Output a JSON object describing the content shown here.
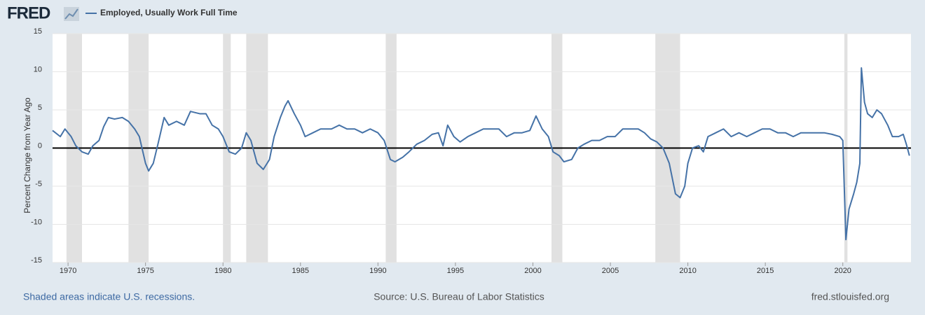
{
  "chart_data": {
    "type": "line",
    "logo": "FRED",
    "y_label": "Percent Change from Year Ago",
    "footer_left": "Shaded areas indicate U.S. recessions.",
    "footer_center": "Source: U.S. Bureau of Labor Statistics",
    "footer_right": "fred.stlouisfed.org",
    "xlim": [
      1969,
      2024.4
    ],
    "xticks": [
      1970,
      1975,
      1980,
      1985,
      1990,
      1995,
      2000,
      2005,
      2010,
      2015,
      2020
    ],
    "ylim": [
      -15,
      15
    ],
    "yticks": [
      -15,
      -10,
      -5,
      0,
      5,
      10,
      15
    ],
    "baseline": 0,
    "grid": true,
    "recession_color": "#e1e1e1",
    "recessions": [
      [
        1969.9,
        1970.9
      ],
      [
        1973.9,
        1975.2
      ],
      [
        1980.0,
        1980.5
      ],
      [
        1981.5,
        1982.9
      ],
      [
        1990.5,
        1991.2
      ],
      [
        2001.2,
        2001.9
      ],
      [
        2007.9,
        2009.5
      ],
      [
        2020.1,
        2020.3
      ]
    ],
    "x": [
      1969.0,
      1969.5,
      1969.8,
      1970.2,
      1970.5,
      1970.9,
      1971.3,
      1971.6,
      1972.0,
      1972.3,
      1972.6,
      1973.0,
      1973.5,
      1973.9,
      1974.3,
      1974.6,
      1975.0,
      1975.2,
      1975.5,
      1975.8,
      1976.2,
      1976.5,
      1977.0,
      1977.5,
      1977.9,
      1978.5,
      1978.9,
      1979.3,
      1979.7,
      1980.0,
      1980.4,
      1980.8,
      1981.2,
      1981.5,
      1981.8,
      1982.2,
      1982.6,
      1983.0,
      1983.3,
      1983.7,
      1984.0,
      1984.2,
      1984.6,
      1985.0,
      1985.3,
      1985.8,
      1986.3,
      1987.0,
      1987.5,
      1988.0,
      1988.5,
      1989.0,
      1989.5,
      1990.0,
      1990.4,
      1990.8,
      1991.1,
      1991.6,
      1992.0,
      1992.5,
      1993.0,
      1993.5,
      1993.9,
      1994.2,
      1994.5,
      1994.9,
      1995.3,
      1995.8,
      1996.3,
      1996.8,
      1997.3,
      1997.8,
      1998.3,
      1998.8,
      1999.3,
      1999.8,
      2000.2,
      2000.6,
      2001.0,
      2001.3,
      2001.7,
      2002.0,
      2002.5,
      2002.9,
      2003.3,
      2003.8,
      2004.3,
      2004.8,
      2005.3,
      2005.8,
      2006.3,
      2006.8,
      2007.2,
      2007.6,
      2008.0,
      2008.4,
      2008.8,
      2009.2,
      2009.5,
      2009.8,
      2010.0,
      2010.3,
      2010.7,
      2011.0,
      2011.3,
      2011.8,
      2012.3,
      2012.8,
      2013.3,
      2013.8,
      2014.3,
      2014.8,
      2015.3,
      2015.8,
      2016.3,
      2016.8,
      2017.3,
      2017.8,
      2018.3,
      2018.8,
      2019.3,
      2019.8,
      2020.0,
      2020.2,
      2020.4,
      2020.7,
      2020.9,
      2021.1,
      2021.2,
      2021.4,
      2021.6,
      2021.9,
      2022.2,
      2022.5,
      2022.9,
      2023.2,
      2023.6,
      2023.9,
      2024.1,
      2024.3
    ],
    "series": [
      {
        "name": "Employed, Usually Work Full Time",
        "color": "#4572a7",
        "values": [
          2.3,
          1.5,
          2.5,
          1.5,
          0.3,
          -0.5,
          -0.8,
          0.3,
          1.0,
          2.8,
          4.0,
          3.8,
          4.0,
          3.5,
          2.5,
          1.5,
          -2.0,
          -3.0,
          -2.0,
          0.5,
          4.0,
          3.0,
          3.5,
          3.0,
          4.8,
          4.5,
          4.5,
          3.0,
          2.5,
          1.5,
          -0.5,
          -0.8,
          0,
          2.0,
          1.0,
          -2.0,
          -2.8,
          -1.5,
          1.5,
          4.0,
          5.5,
          6.2,
          4.5,
          3.0,
          1.5,
          2.0,
          2.5,
          2.5,
          3.0,
          2.5,
          2.5,
          2.0,
          2.5,
          2.0,
          1.0,
          -1.5,
          -1.8,
          -1.2,
          -0.5,
          0.5,
          1.0,
          1.8,
          2.0,
          0.3,
          3.0,
          1.5,
          0.8,
          1.5,
          2.0,
          2.5,
          2.5,
          2.5,
          1.5,
          2.0,
          2.0,
          2.3,
          4.2,
          2.5,
          1.5,
          -0.5,
          -1.0,
          -1.8,
          -1.5,
          0,
          0.5,
          1.0,
          1.0,
          1.5,
          1.5,
          2.5,
          2.5,
          2.5,
          2.0,
          1.2,
          0.8,
          0,
          -2.0,
          -6.0,
          -6.5,
          -5.0,
          -2.0,
          0,
          0.3,
          -0.5,
          1.5,
          2.0,
          2.5,
          1.5,
          2.0,
          1.5,
          2.0,
          2.5,
          2.5,
          2.0,
          2.0,
          1.5,
          2.0,
          2.0,
          2.0,
          2.0,
          1.8,
          1.5,
          1.0,
          -12.0,
          -8.0,
          -6.0,
          -4.5,
          -2.0,
          10.5,
          6.0,
          4.5,
          4.0,
          5.0,
          4.5,
          3.0,
          1.5,
          1.5,
          1.8,
          0.5,
          -1.0
        ]
      }
    ]
  }
}
